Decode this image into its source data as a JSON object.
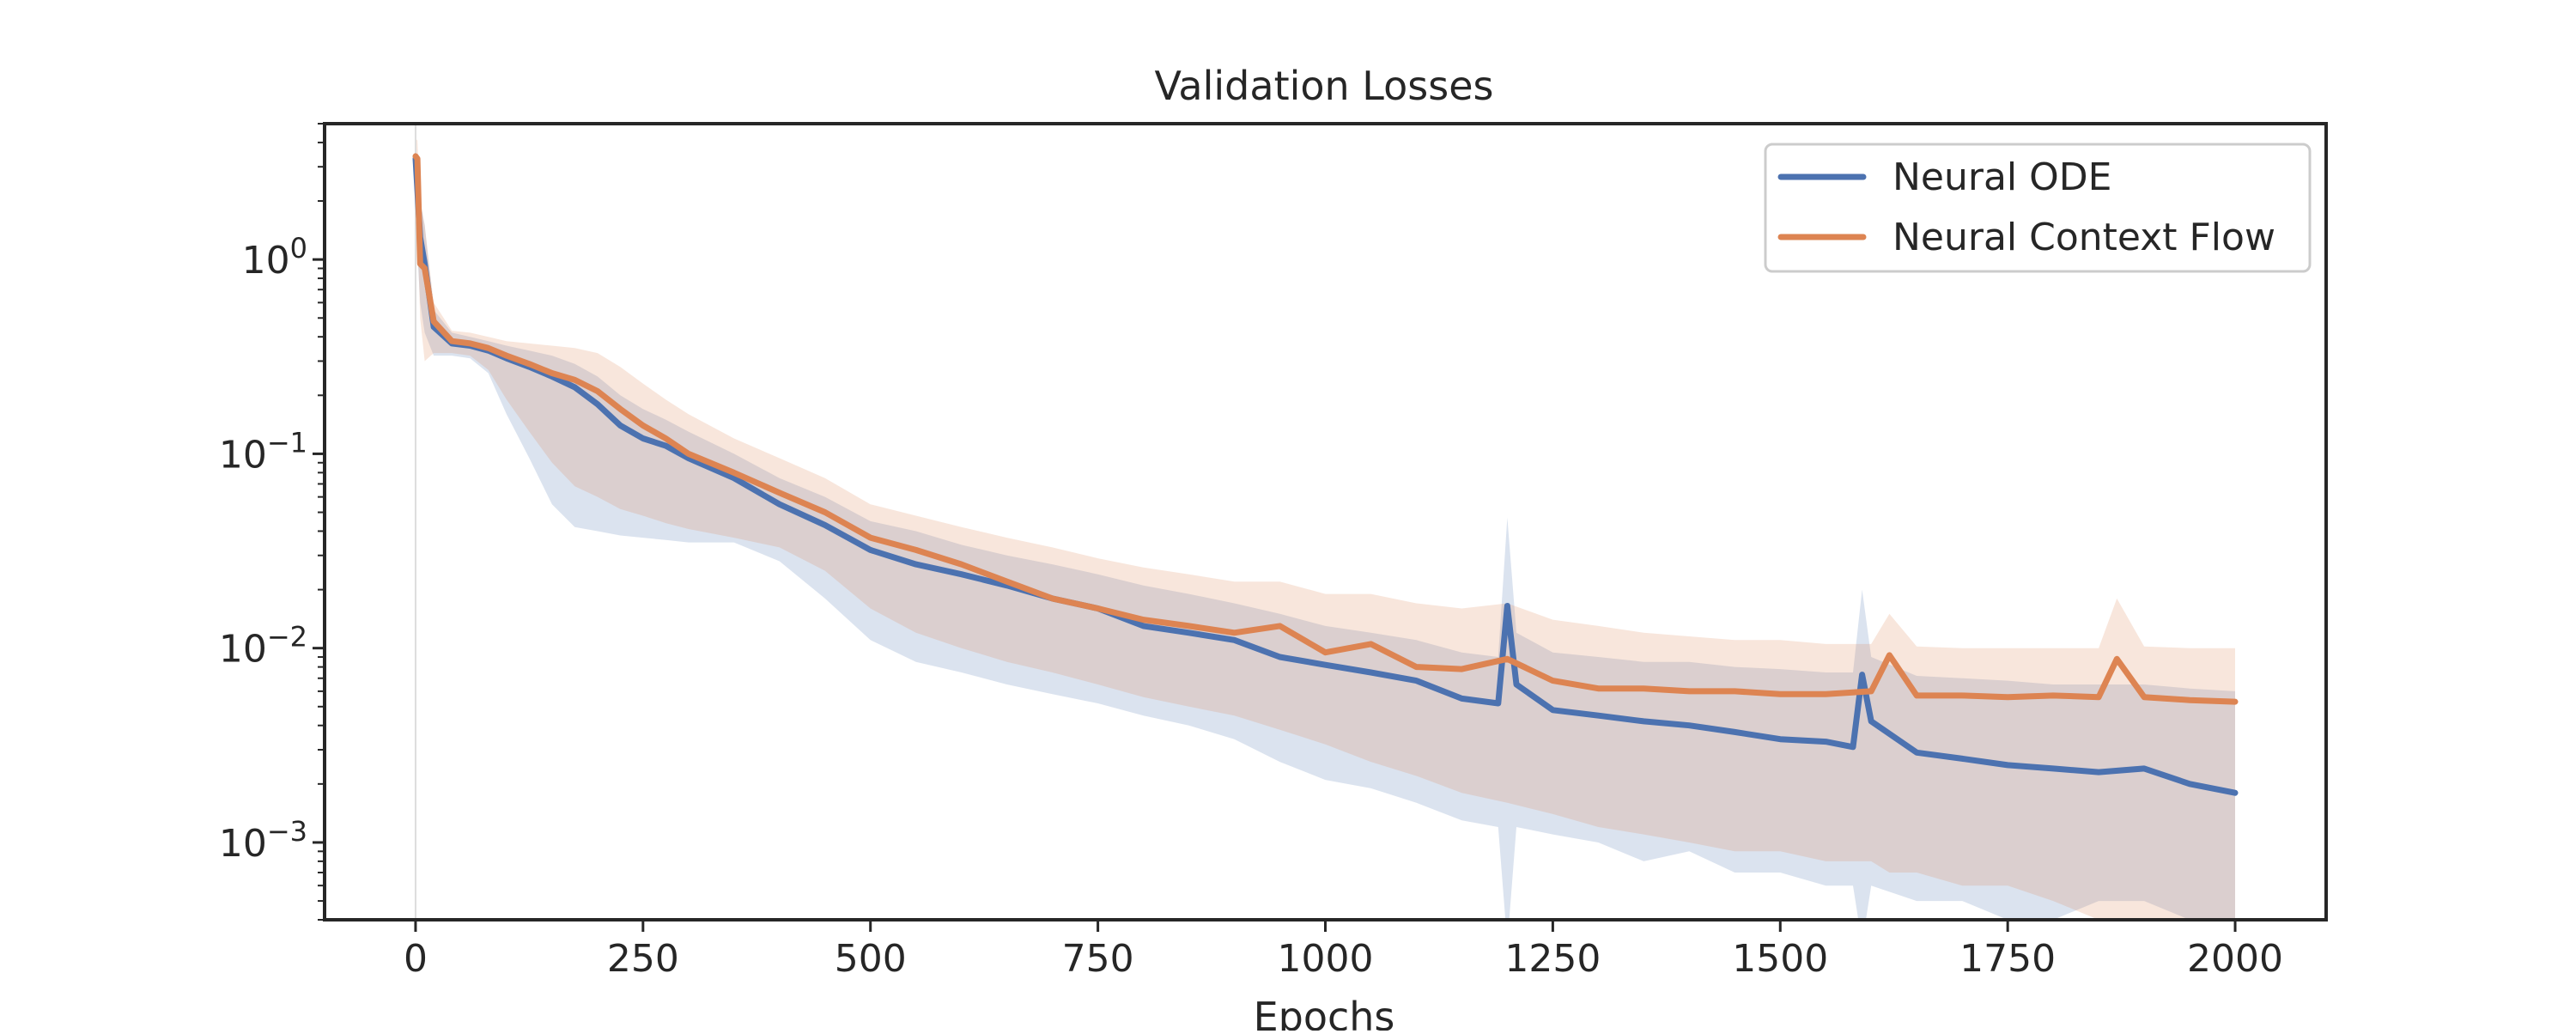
{
  "chart_data": {
    "type": "line",
    "title": "Validation Losses",
    "xlabel": "Epochs",
    "ylabel": "",
    "xlim": [
      -100,
      2100
    ],
    "ylim": [
      0.0004,
      5.0
    ],
    "y_scale": "log",
    "x_ticks": [
      0,
      250,
      500,
      750,
      1000,
      1250,
      1500,
      1750,
      2000
    ],
    "x_tick_labels": [
      "0",
      "250",
      "500",
      "750",
      "1000",
      "1250",
      "1500",
      "1750",
      "2000"
    ],
    "y_ticks": [
      1,
      0.1,
      0.01,
      0.001
    ],
    "y_tick_labels": [
      {
        "base": "10",
        "exp": "0"
      },
      {
        "base": "10",
        "exp": "−1"
      },
      {
        "base": "10",
        "exp": "−2"
      },
      {
        "base": "10",
        "exp": "−3"
      }
    ],
    "grid": false,
    "legend_position": "top-right",
    "vline_x": 0,
    "series": [
      {
        "name": "Neural ODE",
        "color": "#4C72B0",
        "x": [
          0,
          5,
          10,
          20,
          40,
          60,
          80,
          100,
          125,
          150,
          175,
          200,
          225,
          250,
          275,
          300,
          350,
          400,
          450,
          500,
          550,
          600,
          650,
          700,
          750,
          800,
          850,
          900,
          950,
          1000,
          1050,
          1100,
          1150,
          1190,
          1200,
          1210,
          1250,
          1300,
          1350,
          1400,
          1450,
          1500,
          1550,
          1580,
          1590,
          1600,
          1650,
          1700,
          1750,
          1800,
          1850,
          1900,
          1950,
          2000
        ],
        "values": [
          3.3,
          1.3,
          0.95,
          0.45,
          0.37,
          0.36,
          0.34,
          0.31,
          0.28,
          0.25,
          0.22,
          0.18,
          0.14,
          0.12,
          0.11,
          0.095,
          0.075,
          0.055,
          0.043,
          0.032,
          0.027,
          0.024,
          0.021,
          0.018,
          0.016,
          0.013,
          0.012,
          0.011,
          0.009,
          0.0082,
          0.0075,
          0.0068,
          0.0055,
          0.0052,
          0.0165,
          0.0065,
          0.0048,
          0.0045,
          0.0042,
          0.004,
          0.0037,
          0.0034,
          0.0033,
          0.0031,
          0.0073,
          0.0042,
          0.0029,
          0.0027,
          0.0025,
          0.0024,
          0.0023,
          0.0024,
          0.002,
          0.0018
        ],
        "lower": [
          1.6,
          0.6,
          0.42,
          0.32,
          0.32,
          0.31,
          0.26,
          0.16,
          0.095,
          0.055,
          0.042,
          0.04,
          0.038,
          0.037,
          0.036,
          0.035,
          0.035,
          0.028,
          0.018,
          0.011,
          0.0085,
          0.0075,
          0.0065,
          0.0058,
          0.0052,
          0.0045,
          0.004,
          0.0034,
          0.0026,
          0.0021,
          0.0019,
          0.0016,
          0.0013,
          0.0012,
          0.0003,
          0.0012,
          0.0011,
          0.001,
          0.0008,
          0.0009,
          0.0007,
          0.0007,
          0.0006,
          0.0006,
          0.0003,
          0.0006,
          0.0005,
          0.0005,
          0.0004,
          0.0004,
          0.0005,
          0.0005,
          0.0004,
          0.0004
        ],
        "upper": [
          4.0,
          2.0,
          1.5,
          0.55,
          0.42,
          0.4,
          0.38,
          0.36,
          0.34,
          0.32,
          0.29,
          0.25,
          0.2,
          0.17,
          0.15,
          0.13,
          0.1,
          0.075,
          0.06,
          0.045,
          0.04,
          0.034,
          0.03,
          0.027,
          0.024,
          0.021,
          0.019,
          0.017,
          0.015,
          0.013,
          0.012,
          0.011,
          0.0095,
          0.009,
          0.047,
          0.012,
          0.0095,
          0.009,
          0.0085,
          0.0085,
          0.008,
          0.0078,
          0.0075,
          0.0075,
          0.02,
          0.009,
          0.0072,
          0.007,
          0.0068,
          0.0065,
          0.0065,
          0.0065,
          0.0062,
          0.006
        ]
      },
      {
        "name": "Neural Context Flow",
        "color": "#DD8452",
        "x": [
          0,
          2,
          5,
          10,
          20,
          40,
          60,
          80,
          100,
          125,
          150,
          175,
          200,
          225,
          250,
          275,
          300,
          350,
          400,
          450,
          500,
          550,
          600,
          650,
          700,
          750,
          800,
          850,
          900,
          950,
          1000,
          1050,
          1100,
          1150,
          1200,
          1250,
          1300,
          1350,
          1400,
          1450,
          1500,
          1550,
          1600,
          1620,
          1650,
          1700,
          1750,
          1800,
          1850,
          1870,
          1900,
          1950,
          2000
        ],
        "values": [
          3.4,
          3.3,
          0.95,
          0.9,
          0.48,
          0.38,
          0.37,
          0.35,
          0.32,
          0.29,
          0.26,
          0.24,
          0.21,
          0.17,
          0.14,
          0.12,
          0.1,
          0.08,
          0.063,
          0.05,
          0.037,
          0.032,
          0.027,
          0.022,
          0.018,
          0.016,
          0.014,
          0.013,
          0.012,
          0.013,
          0.0095,
          0.0105,
          0.008,
          0.0078,
          0.0088,
          0.0068,
          0.0062,
          0.0062,
          0.006,
          0.006,
          0.0058,
          0.0058,
          0.006,
          0.0092,
          0.0057,
          0.0057,
          0.0056,
          0.0057,
          0.0056,
          0.0088,
          0.0056,
          0.0054,
          0.0053
        ],
        "lower": [
          1.5,
          1.4,
          0.5,
          0.3,
          0.33,
          0.33,
          0.32,
          0.27,
          0.19,
          0.13,
          0.09,
          0.068,
          0.06,
          0.052,
          0.048,
          0.044,
          0.041,
          0.037,
          0.033,
          0.025,
          0.016,
          0.012,
          0.01,
          0.0085,
          0.0075,
          0.0065,
          0.0056,
          0.005,
          0.0045,
          0.0038,
          0.0032,
          0.0026,
          0.0022,
          0.0018,
          0.0016,
          0.0014,
          0.0012,
          0.0011,
          0.001,
          0.0009,
          0.0009,
          0.0008,
          0.0008,
          0.0007,
          0.0007,
          0.0006,
          0.0006,
          0.0005,
          0.0004,
          0.0004,
          0.0004,
          0.0004,
          0.0004
        ],
        "upper": [
          4.2,
          4.1,
          2.0,
          1.5,
          0.6,
          0.43,
          0.42,
          0.4,
          0.38,
          0.37,
          0.36,
          0.35,
          0.33,
          0.28,
          0.23,
          0.19,
          0.16,
          0.12,
          0.095,
          0.075,
          0.055,
          0.048,
          0.042,
          0.037,
          0.033,
          0.029,
          0.026,
          0.024,
          0.022,
          0.022,
          0.019,
          0.019,
          0.017,
          0.016,
          0.017,
          0.014,
          0.013,
          0.012,
          0.0115,
          0.011,
          0.011,
          0.0105,
          0.0105,
          0.015,
          0.0102,
          0.01,
          0.01,
          0.01,
          0.01,
          0.018,
          0.0102,
          0.01,
          0.01
        ]
      }
    ]
  }
}
